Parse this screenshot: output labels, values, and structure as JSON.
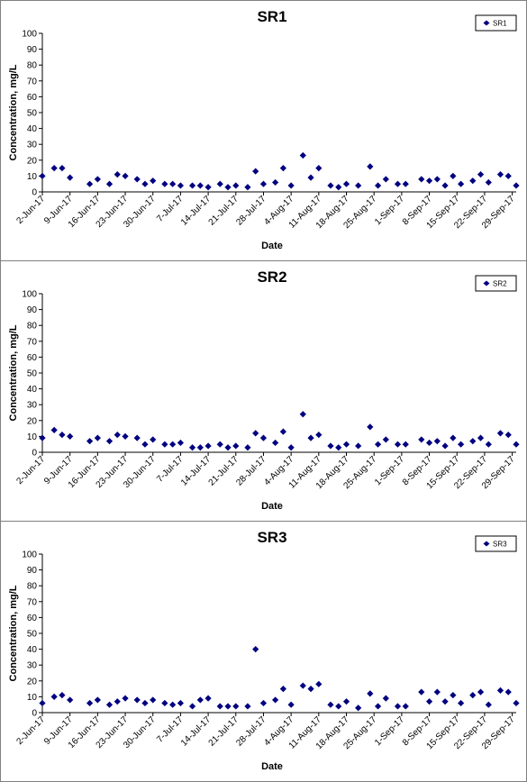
{
  "chart_data": [
    {
      "type": "scatter",
      "title": "SR1",
      "xlabel": "Date",
      "ylabel": "Concentration, mg/L",
      "ylim": [
        0,
        100
      ],
      "yticks": [
        0,
        10,
        20,
        30,
        40,
        50,
        60,
        70,
        80,
        90,
        100
      ],
      "xlim": [
        "2017-06-02",
        "2017-09-30"
      ],
      "xtick_labels": [
        "2-Jun-17",
        "9-Jun-17",
        "16-Jun-17",
        "23-Jun-17",
        "30-Jun-17",
        "7-Jul-17",
        "14-Jul-17",
        "21-Jul-17",
        "28-Jul-17",
        "4-Aug-17",
        "11-Aug-17",
        "18-Aug-17",
        "25-Aug-17",
        "1-Sep-17",
        "8-Sep-17",
        "15-Sep-17",
        "22-Sep-17",
        "29-Sep-17"
      ],
      "marker_color": "#000080",
      "legend_position": "top-right",
      "grid": false,
      "series": [
        {
          "name": "SR1",
          "x": [
            "2017-06-02",
            "2017-06-05",
            "2017-06-07",
            "2017-06-09",
            "2017-06-14",
            "2017-06-16",
            "2017-06-19",
            "2017-06-21",
            "2017-06-23",
            "2017-06-26",
            "2017-06-28",
            "2017-06-30",
            "2017-07-03",
            "2017-07-05",
            "2017-07-07",
            "2017-07-10",
            "2017-07-12",
            "2017-07-14",
            "2017-07-17",
            "2017-07-19",
            "2017-07-21",
            "2017-07-24",
            "2017-07-26",
            "2017-07-28",
            "2017-07-31",
            "2017-08-02",
            "2017-08-04",
            "2017-08-07",
            "2017-08-09",
            "2017-08-11",
            "2017-08-14",
            "2017-08-16",
            "2017-08-18",
            "2017-08-21",
            "2017-08-24",
            "2017-08-26",
            "2017-08-28",
            "2017-08-31",
            "2017-09-02",
            "2017-09-06",
            "2017-09-08",
            "2017-09-10",
            "2017-09-12",
            "2017-09-14",
            "2017-09-16",
            "2017-09-19",
            "2017-09-21",
            "2017-09-23",
            "2017-09-26",
            "2017-09-28",
            "2017-09-30"
          ],
          "y": [
            10,
            15,
            15,
            9,
            5,
            8,
            5,
            11,
            10,
            8,
            5,
            7,
            5,
            5,
            4,
            4,
            4,
            3,
            5,
            3,
            4,
            3,
            13,
            5,
            6,
            15,
            4,
            23,
            9,
            15,
            4,
            3,
            5,
            4,
            16,
            4,
            8,
            5,
            5,
            8,
            7,
            8,
            4,
            10,
            5,
            7,
            11,
            6,
            11,
            10,
            4
          ]
        }
      ]
    },
    {
      "type": "scatter",
      "title": "SR2",
      "xlabel": "Date",
      "ylabel": "Concentration, mg/L",
      "ylim": [
        0,
        100
      ],
      "yticks": [
        0,
        10,
        20,
        30,
        40,
        50,
        60,
        70,
        80,
        90,
        100
      ],
      "xlim": [
        "2017-06-02",
        "2017-09-30"
      ],
      "xtick_labels": [
        "2-Jun-17",
        "9-Jun-17",
        "16-Jun-17",
        "23-Jun-17",
        "30-Jun-17",
        "7-Jul-17",
        "14-Jul-17",
        "21-Jul-17",
        "28-Jul-17",
        "4-Aug-17",
        "11-Aug-17",
        "18-Aug-17",
        "25-Aug-17",
        "1-Sep-17",
        "8-Sep-17",
        "15-Sep-17",
        "22-Sep-17",
        "29-Sep-17"
      ],
      "marker_color": "#000080",
      "legend_position": "top-right",
      "grid": false,
      "series": [
        {
          "name": "SR2",
          "x": [
            "2017-06-02",
            "2017-06-05",
            "2017-06-07",
            "2017-06-09",
            "2017-06-14",
            "2017-06-16",
            "2017-06-19",
            "2017-06-21",
            "2017-06-23",
            "2017-06-26",
            "2017-06-28",
            "2017-06-30",
            "2017-07-03",
            "2017-07-05",
            "2017-07-07",
            "2017-07-10",
            "2017-07-12",
            "2017-07-14",
            "2017-07-17",
            "2017-07-19",
            "2017-07-21",
            "2017-07-24",
            "2017-07-26",
            "2017-07-28",
            "2017-07-31",
            "2017-08-02",
            "2017-08-04",
            "2017-08-07",
            "2017-08-09",
            "2017-08-11",
            "2017-08-14",
            "2017-08-16",
            "2017-08-18",
            "2017-08-21",
            "2017-08-24",
            "2017-08-26",
            "2017-08-28",
            "2017-08-31",
            "2017-09-02",
            "2017-09-06",
            "2017-09-08",
            "2017-09-10",
            "2017-09-12",
            "2017-09-14",
            "2017-09-16",
            "2017-09-19",
            "2017-09-21",
            "2017-09-23",
            "2017-09-26",
            "2017-09-28",
            "2017-09-30"
          ],
          "y": [
            9,
            14,
            11,
            10,
            7,
            9,
            7,
            11,
            10,
            9,
            5,
            8,
            5,
            5,
            6,
            3,
            3,
            4,
            5,
            3,
            4,
            3,
            12,
            9,
            6,
            13,
            3,
            24,
            9,
            11,
            4,
            3,
            5,
            4,
            16,
            5,
            8,
            5,
            5,
            8,
            6,
            7,
            4,
            9,
            5,
            7,
            9,
            5,
            12,
            11,
            5
          ]
        }
      ]
    },
    {
      "type": "scatter",
      "title": "SR3",
      "xlabel": "Date",
      "ylabel": "Concentration, mg/L",
      "ylim": [
        0,
        100
      ],
      "yticks": [
        0,
        10,
        20,
        30,
        40,
        50,
        60,
        70,
        80,
        90,
        100
      ],
      "xlim": [
        "2017-06-02",
        "2017-09-30"
      ],
      "xtick_labels": [
        "2-Jun-17",
        "9-Jun-17",
        "16-Jun-17",
        "23-Jun-17",
        "30-Jun-17",
        "7-Jul-17",
        "14-Jul-17",
        "21-Jul-17",
        "28-Jul-17",
        "4-Aug-17",
        "11-Aug-17",
        "18-Aug-17",
        "25-Aug-17",
        "1-Sep-17",
        "8-Sep-17",
        "15-Sep-17",
        "22-Sep-17",
        "29-Sep-17"
      ],
      "marker_color": "#000080",
      "legend_position": "top-right",
      "grid": false,
      "series": [
        {
          "name": "SR3",
          "x": [
            "2017-06-02",
            "2017-06-05",
            "2017-06-07",
            "2017-06-09",
            "2017-06-14",
            "2017-06-16",
            "2017-06-19",
            "2017-06-21",
            "2017-06-23",
            "2017-06-26",
            "2017-06-28",
            "2017-06-30",
            "2017-07-03",
            "2017-07-05",
            "2017-07-07",
            "2017-07-10",
            "2017-07-12",
            "2017-07-14",
            "2017-07-17",
            "2017-07-19",
            "2017-07-21",
            "2017-07-24",
            "2017-07-26",
            "2017-07-28",
            "2017-07-31",
            "2017-08-02",
            "2017-08-04",
            "2017-08-07",
            "2017-08-09",
            "2017-08-11",
            "2017-08-14",
            "2017-08-16",
            "2017-08-18",
            "2017-08-21",
            "2017-08-24",
            "2017-08-26",
            "2017-08-28",
            "2017-08-31",
            "2017-09-02",
            "2017-09-06",
            "2017-09-08",
            "2017-09-10",
            "2017-09-12",
            "2017-09-14",
            "2017-09-16",
            "2017-09-19",
            "2017-09-21",
            "2017-09-23",
            "2017-09-26",
            "2017-09-28",
            "2017-09-30"
          ],
          "y": [
            6,
            10,
            11,
            8,
            6,
            8,
            5,
            7,
            9,
            8,
            6,
            8,
            6,
            5,
            6,
            4,
            8,
            9,
            4,
            4,
            4,
            4,
            40,
            6,
            8,
            15,
            5,
            17,
            15,
            18,
            5,
            4,
            7,
            3,
            12,
            4,
            9,
            4,
            4,
            13,
            7,
            13,
            7,
            11,
            6,
            11,
            13,
            5,
            14,
            13,
            6
          ]
        }
      ]
    }
  ]
}
